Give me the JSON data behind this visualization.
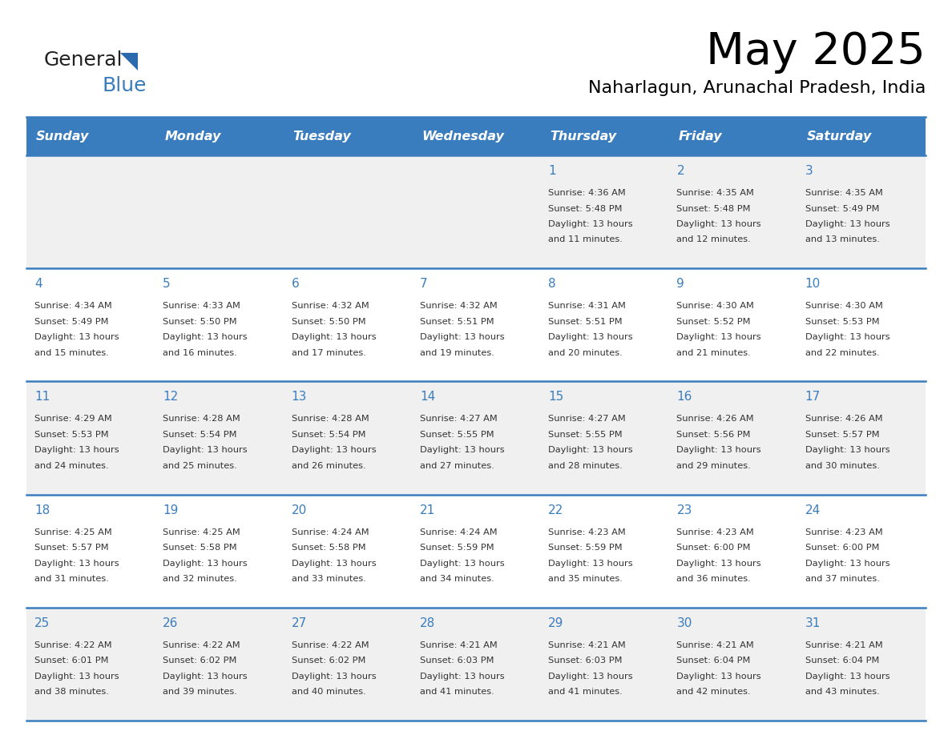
{
  "title": "May 2025",
  "subtitle": "Naharlagun, Arunachal Pradesh, India",
  "days_of_week": [
    "Sunday",
    "Monday",
    "Tuesday",
    "Wednesday",
    "Thursday",
    "Friday",
    "Saturday"
  ],
  "header_bg": "#3a7dbf",
  "header_text": "#ffffff",
  "row_bg_odd": "#f0f0f0",
  "row_bg_even": "#ffffff",
  "day_num_color": "#3a7dbf",
  "cell_text_color": "#333333",
  "border_color": "#3a7dbf",
  "logo_general_color": "#222222",
  "logo_blue_color": "#3a7dbf",
  "logo_triangle_color": "#2a6aad",
  "calendar": [
    [
      {
        "day": "",
        "sunrise": "",
        "sunset": "",
        "daylight_line1": "",
        "daylight_line2": ""
      },
      {
        "day": "",
        "sunrise": "",
        "sunset": "",
        "daylight_line1": "",
        "daylight_line2": ""
      },
      {
        "day": "",
        "sunrise": "",
        "sunset": "",
        "daylight_line1": "",
        "daylight_line2": ""
      },
      {
        "day": "",
        "sunrise": "",
        "sunset": "",
        "daylight_line1": "",
        "daylight_line2": ""
      },
      {
        "day": "1",
        "sunrise": "4:36 AM",
        "sunset": "5:48 PM",
        "daylight_line1": "13 hours",
        "daylight_line2": "and 11 minutes."
      },
      {
        "day": "2",
        "sunrise": "4:35 AM",
        "sunset": "5:48 PM",
        "daylight_line1": "13 hours",
        "daylight_line2": "and 12 minutes."
      },
      {
        "day": "3",
        "sunrise": "4:35 AM",
        "sunset": "5:49 PM",
        "daylight_line1": "13 hours",
        "daylight_line2": "and 13 minutes."
      }
    ],
    [
      {
        "day": "4",
        "sunrise": "4:34 AM",
        "sunset": "5:49 PM",
        "daylight_line1": "13 hours",
        "daylight_line2": "and 15 minutes."
      },
      {
        "day": "5",
        "sunrise": "4:33 AM",
        "sunset": "5:50 PM",
        "daylight_line1": "13 hours",
        "daylight_line2": "and 16 minutes."
      },
      {
        "day": "6",
        "sunrise": "4:32 AM",
        "sunset": "5:50 PM",
        "daylight_line1": "13 hours",
        "daylight_line2": "and 17 minutes."
      },
      {
        "day": "7",
        "sunrise": "4:32 AM",
        "sunset": "5:51 PM",
        "daylight_line1": "13 hours",
        "daylight_line2": "and 19 minutes."
      },
      {
        "day": "8",
        "sunrise": "4:31 AM",
        "sunset": "5:51 PM",
        "daylight_line1": "13 hours",
        "daylight_line2": "and 20 minutes."
      },
      {
        "day": "9",
        "sunrise": "4:30 AM",
        "sunset": "5:52 PM",
        "daylight_line1": "13 hours",
        "daylight_line2": "and 21 minutes."
      },
      {
        "day": "10",
        "sunrise": "4:30 AM",
        "sunset": "5:53 PM",
        "daylight_line1": "13 hours",
        "daylight_line2": "and 22 minutes."
      }
    ],
    [
      {
        "day": "11",
        "sunrise": "4:29 AM",
        "sunset": "5:53 PM",
        "daylight_line1": "13 hours",
        "daylight_line2": "and 24 minutes."
      },
      {
        "day": "12",
        "sunrise": "4:28 AM",
        "sunset": "5:54 PM",
        "daylight_line1": "13 hours",
        "daylight_line2": "and 25 minutes."
      },
      {
        "day": "13",
        "sunrise": "4:28 AM",
        "sunset": "5:54 PM",
        "daylight_line1": "13 hours",
        "daylight_line2": "and 26 minutes."
      },
      {
        "day": "14",
        "sunrise": "4:27 AM",
        "sunset": "5:55 PM",
        "daylight_line1": "13 hours",
        "daylight_line2": "and 27 minutes."
      },
      {
        "day": "15",
        "sunrise": "4:27 AM",
        "sunset": "5:55 PM",
        "daylight_line1": "13 hours",
        "daylight_line2": "and 28 minutes."
      },
      {
        "day": "16",
        "sunrise": "4:26 AM",
        "sunset": "5:56 PM",
        "daylight_line1": "13 hours",
        "daylight_line2": "and 29 minutes."
      },
      {
        "day": "17",
        "sunrise": "4:26 AM",
        "sunset": "5:57 PM",
        "daylight_line1": "13 hours",
        "daylight_line2": "and 30 minutes."
      }
    ],
    [
      {
        "day": "18",
        "sunrise": "4:25 AM",
        "sunset": "5:57 PM",
        "daylight_line1": "13 hours",
        "daylight_line2": "and 31 minutes."
      },
      {
        "day": "19",
        "sunrise": "4:25 AM",
        "sunset": "5:58 PM",
        "daylight_line1": "13 hours",
        "daylight_line2": "and 32 minutes."
      },
      {
        "day": "20",
        "sunrise": "4:24 AM",
        "sunset": "5:58 PM",
        "daylight_line1": "13 hours",
        "daylight_line2": "and 33 minutes."
      },
      {
        "day": "21",
        "sunrise": "4:24 AM",
        "sunset": "5:59 PM",
        "daylight_line1": "13 hours",
        "daylight_line2": "and 34 minutes."
      },
      {
        "day": "22",
        "sunrise": "4:23 AM",
        "sunset": "5:59 PM",
        "daylight_line1": "13 hours",
        "daylight_line2": "and 35 minutes."
      },
      {
        "day": "23",
        "sunrise": "4:23 AM",
        "sunset": "6:00 PM",
        "daylight_line1": "13 hours",
        "daylight_line2": "and 36 minutes."
      },
      {
        "day": "24",
        "sunrise": "4:23 AM",
        "sunset": "6:00 PM",
        "daylight_line1": "13 hours",
        "daylight_line2": "and 37 minutes."
      }
    ],
    [
      {
        "day": "25",
        "sunrise": "4:22 AM",
        "sunset": "6:01 PM",
        "daylight_line1": "13 hours",
        "daylight_line2": "and 38 minutes."
      },
      {
        "day": "26",
        "sunrise": "4:22 AM",
        "sunset": "6:02 PM",
        "daylight_line1": "13 hours",
        "daylight_line2": "and 39 minutes."
      },
      {
        "day": "27",
        "sunrise": "4:22 AM",
        "sunset": "6:02 PM",
        "daylight_line1": "13 hours",
        "daylight_line2": "and 40 minutes."
      },
      {
        "day": "28",
        "sunrise": "4:21 AM",
        "sunset": "6:03 PM",
        "daylight_line1": "13 hours",
        "daylight_line2": "and 41 minutes."
      },
      {
        "day": "29",
        "sunrise": "4:21 AM",
        "sunset": "6:03 PM",
        "daylight_line1": "13 hours",
        "daylight_line2": "and 41 minutes."
      },
      {
        "day": "30",
        "sunrise": "4:21 AM",
        "sunset": "6:04 PM",
        "daylight_line1": "13 hours",
        "daylight_line2": "and 42 minutes."
      },
      {
        "day": "31",
        "sunrise": "4:21 AM",
        "sunset": "6:04 PM",
        "daylight_line1": "13 hours",
        "daylight_line2": "and 43 minutes."
      }
    ]
  ]
}
